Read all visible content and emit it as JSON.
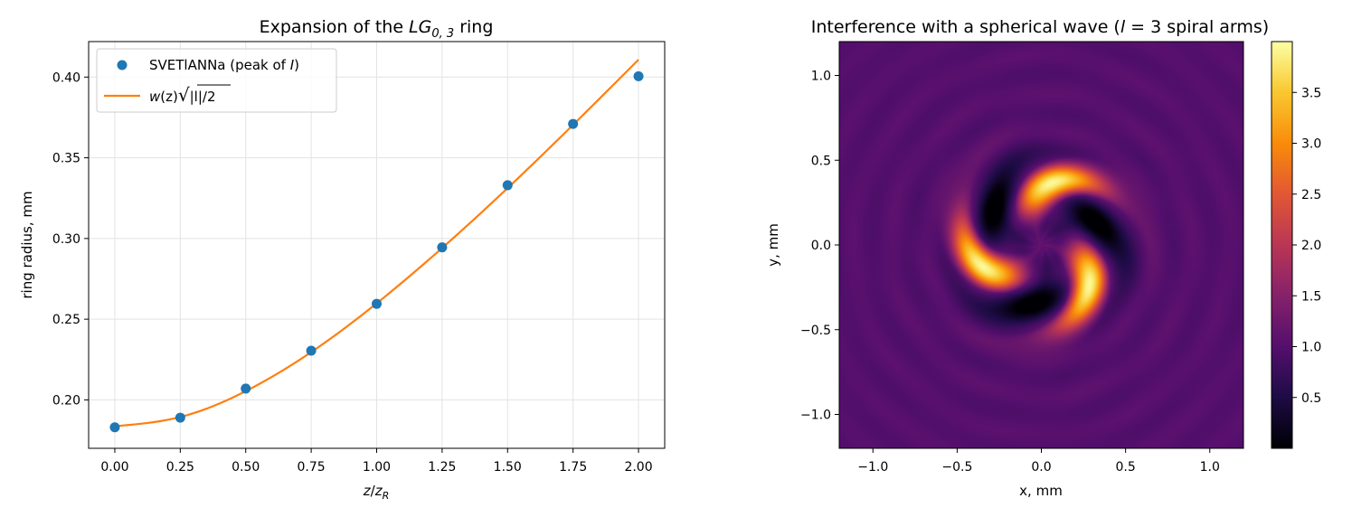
{
  "chart_data": [
    {
      "type": "scatter",
      "title": "Expansion of the LG0,3 ring",
      "title_parts": {
        "prefix": "Expansion of the ",
        "main": "LG",
        "sub": "0, 3",
        "suffix": " ring"
      },
      "xlabel": "z/zR",
      "xlabel_parts": {
        "a": "z",
        "sep": "/",
        "b": "z",
        "sub": "R"
      },
      "ylabel": "ring radius, mm",
      "xlim": [
        -0.1,
        2.1
      ],
      "ylim": [
        0.17,
        0.422
      ],
      "x_ticks": [
        "0.00",
        "0.25",
        "0.50",
        "0.75",
        "1.00",
        "1.25",
        "1.50",
        "1.75",
        "2.00"
      ],
      "y_ticks": [
        "0.20",
        "0.25",
        "0.30",
        "0.35",
        "0.40"
      ],
      "grid": true,
      "legend_position": "upper-left",
      "series": [
        {
          "name": "SVETlANNa (peak of I)",
          "name_parts": {
            "prefix": "SVETlANNa (peak of ",
            "italic": "I",
            "suffix": ")"
          },
          "type": "scatter",
          "color": "#1f77b4",
          "x": [
            0.0,
            0.25,
            0.5,
            0.75,
            1.0,
            1.25,
            1.5,
            1.75,
            2.0
          ],
          "y": [
            0.183,
            0.189,
            0.207,
            0.2305,
            0.2595,
            0.2945,
            0.333,
            0.371,
            0.4005
          ]
        },
        {
          "name": "w(z)√|l|/2",
          "name_parts": {
            "a": "w",
            "b": "(z)",
            "root": "√",
            "c": "|l|/2"
          },
          "type": "line",
          "color": "#ff7f0e",
          "x": [
            0.0,
            0.25,
            0.5,
            0.75,
            1.0,
            1.25,
            1.5,
            1.75,
            2.0
          ],
          "y": [
            0.1837,
            0.1894,
            0.2054,
            0.2296,
            0.2598,
            0.2941,
            0.3312,
            0.3704,
            0.4108
          ]
        }
      ]
    },
    {
      "type": "heatmap",
      "title": "Interference with a spherical wave (l = 3 spiral arms)",
      "title_parts": {
        "prefix": "Interference with a spherical wave (",
        "italic": "l",
        "mid": " = 3 spiral arms)"
      },
      "xlabel": "x, mm",
      "ylabel": "y, mm",
      "xlim": [
        -1.2,
        1.2
      ],
      "ylim": [
        -1.2,
        1.2
      ],
      "x_ticks": [
        "−1.0",
        "−0.5",
        "0.0",
        "0.5",
        "1.0"
      ],
      "y_ticks": [
        "−1.0",
        "−0.5",
        "0.0",
        "0.5",
        "1.0"
      ],
      "colormap": "inferno",
      "colorbar": {
        "range": [
          0.0,
          4.0
        ],
        "ticks": [
          "0.5",
          "1.0",
          "1.5",
          "2.0",
          "2.5",
          "3.0",
          "3.5"
        ]
      },
      "spiral_arms": 3,
      "background_level": 1.0,
      "peak_level": 4.0
    }
  ]
}
